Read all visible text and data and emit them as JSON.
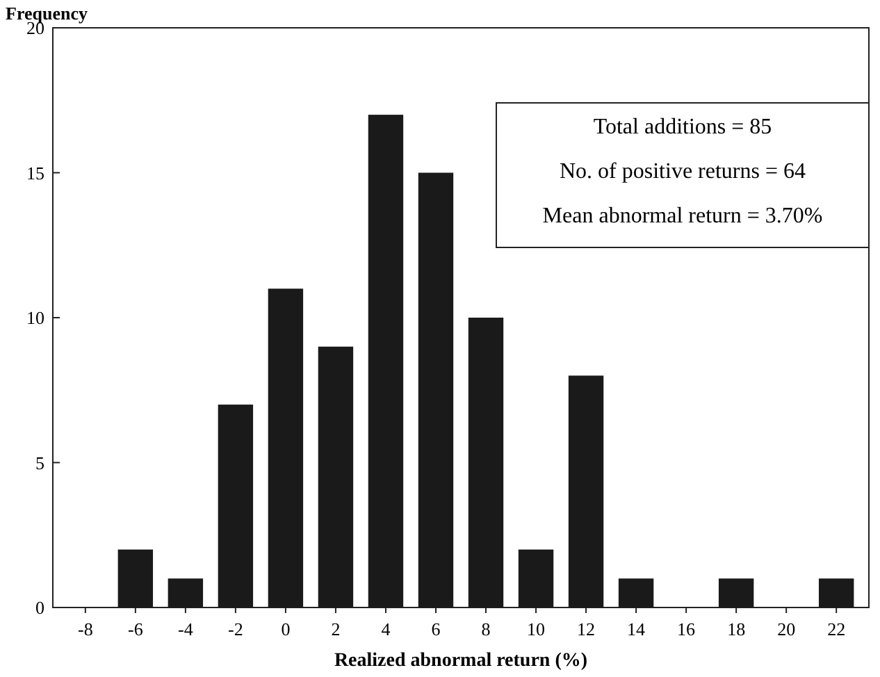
{
  "chart_data": {
    "type": "bar",
    "xlabel": "Realized abnormal return (%)",
    "ylabel": "Frequency",
    "categories": [
      "-8",
      "-6",
      "-4",
      "-2",
      "0",
      "2",
      "4",
      "6",
      "8",
      "10",
      "12",
      "14",
      "16",
      "18",
      "20",
      "22"
    ],
    "values": [
      0,
      2,
      1,
      7,
      11,
      9,
      17,
      15,
      10,
      2,
      8,
      1,
      0,
      1,
      0,
      1
    ],
    "color": "#1a1a1a",
    "ylim": [
      0,
      20
    ],
    "yticks": [
      0,
      5,
      10,
      15,
      20
    ],
    "grid": false,
    "annotations": [
      "Total additions = 85",
      "No. of positive returns = 64",
      "Mean abnormal return = 3.70%"
    ]
  }
}
